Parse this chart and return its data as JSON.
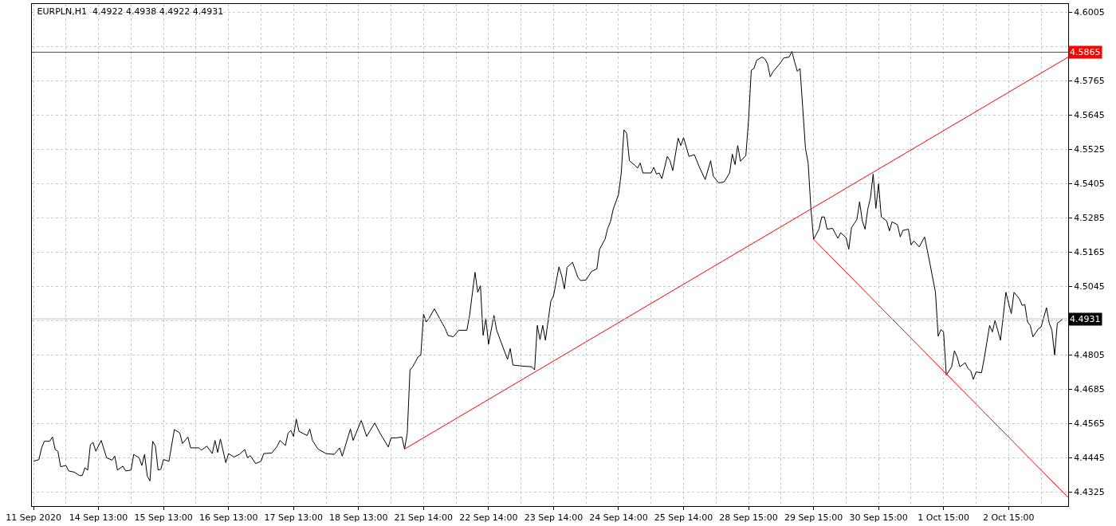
{
  "chart_data": {
    "type": "line",
    "title": "EURPLN,H1  4.4922 4.4938 4.4922 4.4931",
    "categories": [
      "11 Sep 2020",
      null,
      null,
      null,
      null,
      null,
      null,
      null,
      null,
      null,
      null,
      null,
      null,
      null,
      null,
      null,
      null,
      null,
      null,
      null,
      null,
      null,
      null,
      null,
      "14 Sep 13:00",
      null,
      null,
      null,
      null,
      null,
      null,
      null,
      null,
      null,
      null,
      null,
      null,
      null,
      null,
      null,
      null,
      null,
      null,
      null,
      null,
      null,
      null,
      null,
      "15 Sep 13:00",
      null,
      null,
      null,
      null,
      null,
      null,
      null,
      null,
      null,
      null,
      null,
      null,
      null,
      null,
      null,
      null,
      null,
      null,
      null,
      null,
      null,
      null,
      null,
      "16 Sep 13:00",
      null,
      null,
      null,
      null,
      null,
      null,
      null,
      null,
      null,
      null,
      null,
      null,
      null,
      null,
      null,
      null,
      null,
      null,
      null,
      null,
      null,
      null,
      null,
      "17 Sep 13:00",
      null,
      null,
      null,
      null,
      null,
      null,
      null,
      null,
      null,
      null,
      null,
      null,
      null,
      null,
      null,
      null,
      null,
      null,
      null,
      null,
      null,
      null,
      null,
      "18 Sep 13:00",
      null,
      null,
      null,
      null,
      null,
      null,
      null,
      null,
      null,
      null,
      null,
      null,
      null,
      null,
      null,
      null,
      null,
      null,
      null,
      null,
      null,
      null,
      null,
      "21 Sep 14:00",
      null,
      null,
      null,
      null,
      null,
      null,
      null,
      null,
      null,
      null,
      null,
      null,
      null,
      null,
      null,
      null,
      null,
      null,
      null,
      null,
      null,
      null,
      null,
      "22 Sep 14:00",
      null,
      null,
      null,
      null,
      null,
      null,
      null,
      null,
      null,
      null,
      null,
      null,
      null,
      null,
      null,
      null,
      null,
      null,
      null,
      null,
      null,
      null,
      null,
      "23 Sep 14:00",
      null,
      null,
      null,
      null,
      null,
      null,
      null,
      null,
      null,
      null,
      null,
      null,
      null,
      null,
      null,
      null,
      null,
      null,
      null,
      null,
      null,
      null,
      null,
      "24 Sep 14:00",
      null,
      null,
      null,
      null,
      null,
      null,
      null,
      null,
      null,
      null,
      null,
      null,
      null,
      null,
      null,
      null,
      null,
      null,
      null,
      null,
      null,
      null,
      null,
      "25 Sep 14:00",
      null,
      null,
      null,
      null,
      null,
      null,
      null,
      null,
      null,
      null,
      null,
      null,
      null,
      null,
      null,
      null,
      null,
      null,
      null,
      null,
      null,
      null,
      null,
      "28 Sep 15:00",
      null,
      null,
      null,
      null,
      null,
      null,
      null,
      null,
      null,
      null,
      null,
      null,
      null,
      null,
      null,
      null,
      null,
      null,
      null,
      null,
      null,
      null,
      null,
      "29 Sep 15:00",
      null,
      null,
      null,
      null,
      null,
      null,
      null,
      null,
      null,
      null,
      null,
      null,
      null,
      null,
      null,
      null,
      null,
      null,
      null,
      null,
      null,
      null,
      null,
      "30 Sep 15:00",
      null,
      null,
      null,
      null,
      null,
      null,
      null,
      null,
      null,
      null,
      null,
      null,
      null,
      null,
      null,
      null,
      null,
      null,
      null,
      null,
      null,
      null,
      null,
      "1 Oct 15:00",
      null,
      null,
      null,
      null,
      null,
      null,
      null,
      null,
      null,
      null,
      null,
      null,
      null,
      null,
      null,
      null,
      null,
      null,
      null,
      null,
      null,
      null,
      null,
      "2 Oct 15:00",
      null,
      null,
      null,
      null,
      null,
      null,
      null,
      null,
      null,
      null,
      null,
      null,
      null,
      null,
      null,
      null,
      null,
      null,
      null,
      null,
      null,
      null
    ],
    "series": [
      {
        "color": "#000000",
        "values": [
          4.4432,
          null,
          4.4438,
          4.4479,
          4.4502,
          null,
          4.4502,
          4.4517,
          4.4473,
          4.4467,
          4.4413,
          null,
          4.4417,
          4.4398,
          null,
          4.4394,
          null,
          4.4382,
          4.4382,
          4.4409,
          4.4401,
          4.449,
          4.4498,
          4.4467,
          null,
          4.4505,
          null,
          4.4444,
          null,
          4.4436,
          4.445,
          4.4401,
          null,
          4.4415,
          4.4398,
          null,
          4.4401,
          4.4456,
          null,
          4.4444,
          4.4417,
          4.4456,
          4.438,
          4.4363,
          4.4502,
          4.4485,
          4.4401,
          4.4404,
          4.4438,
          null,
          4.4432,
          null,
          4.4543,
          null,
          4.4531,
          4.4494,
          null,
          4.4517,
          4.4479,
          null,
          null,
          4.4479,
          4.4471,
          null,
          4.4485,
          null,
          4.4459,
          4.4505,
          4.4463,
          4.451,
          null,
          4.4427,
          4.4459,
          null,
          4.4447,
          null,
          4.4456,
          null,
          4.4473,
          4.4444,
          4.4452,
          null,
          4.4424,
          null,
          4.4432,
          4.4459,
          null,
          null,
          4.4461,
          null,
          4.4485,
          4.4505,
          null,
          4.4487,
          4.4531,
          4.454,
          4.4519,
          4.458,
          4.4537,
          null,
          null,
          4.4522,
          4.4545,
          4.4505,
          null,
          4.4475,
          null,
          null,
          4.4459,
          null,
          null,
          4.4456,
          null,
          4.4479,
          4.445,
          null,
          null,
          4.4545,
          4.4505,
          null,
          null,
          4.4575,
          null,
          4.4519,
          null,
          null,
          4.4566,
          null,
          4.4529,
          null,
          null,
          4.4482,
          4.4514,
          null,
          4.4514,
          null,
          4.4517,
          4.4475,
          4.4531,
          4.4752,
          4.4763,
          null,
          4.4798,
          4.4804,
          4.4947,
          4.492,
          4.4932,
          null,
          4.4966,
          4.4949,
          null,
          4.4914,
          4.4897,
          4.4873,
          null,
          4.4868,
          null,
          4.4891,
          null,
          null,
          4.4891,
          4.4943,
          null,
          4.5094,
          4.5024,
          4.5047,
          4.4873,
          4.4932,
          4.4842,
          null,
          4.4943,
          4.4891,
          null,
          null,
          null,
          4.4789,
          4.4827,
          4.4769,
          null,
          null,
          null,
          4.4765,
          null,
          null,
          4.4763,
          4.4752,
          4.4908,
          4.4858,
          4.4908,
          4.4856,
          null,
          4.4993,
          4.5012,
          null,
          4.5113,
          4.5082,
          4.5036,
          4.5111,
          null,
          4.5129,
          null,
          4.5076,
          4.5065,
          null,
          4.5067,
          null,
          4.5097,
          null,
          4.5106,
          4.5175,
          null,
          4.521,
          4.5248,
          4.5271,
          4.5314,
          null,
          4.5367,
          4.5442,
          4.5593,
          4.5581,
          4.5485,
          null,
          4.5469,
          4.5459,
          4.5477,
          4.5442,
          null,
          null,
          4.5442,
          4.5462,
          4.5438,
          4.5442,
          4.5422,
          null,
          4.55,
          4.5485,
          4.545,
          null,
          4.5564,
          4.5538,
          4.5566,
          null,
          4.55,
          null,
          4.5506,
          null,
          4.5459,
          null,
          4.5419,
          null,
          4.5485,
          4.543,
          null,
          4.5407,
          null,
          4.5411,
          null,
          4.5442,
          4.5508,
          4.5471,
          4.5538,
          4.5483,
          null,
          4.5503,
          4.5628,
          4.5802,
          4.5808,
          4.5837,
          null,
          4.5848,
          4.5842,
          4.5825,
          4.5779,
          4.5796,
          null,
          4.5819,
          4.5831,
          4.5845,
          null,
          4.5848,
          4.5868,
          4.5831,
          4.5798,
          4.5808,
          4.567,
          4.5529,
          4.5477,
          4.532,
          4.521,
          4.5227,
          4.5245,
          4.5288,
          4.5288,
          4.5245,
          null,
          4.5248,
          null,
          4.5213,
          4.5233,
          null,
          4.5215,
          4.5175,
          4.525,
          null,
          4.5279,
          4.5341,
          4.5274,
          4.5245,
          4.5314,
          4.5355,
          4.5438,
          4.5318,
          4.5404,
          4.5288,
          null,
          4.5274,
          4.5239,
          4.5271,
          null,
          4.526,
          4.5218,
          4.5241,
          null,
          4.5245,
          4.519,
          4.5204,
          null,
          4.5183,
          null,
          4.5218,
          null,
          4.5123,
          null,
          4.5024,
          4.487,
          4.4893,
          4.4885,
          4.4734,
          null,
          4.4763,
          4.4819,
          4.4798,
          4.4763,
          null,
          4.4777,
          4.4757,
          4.4749,
          4.4719,
          4.4745,
          null,
          4.4742,
          4.4792,
          null,
          4.4908,
          4.4885,
          4.4925,
          null,
          4.4856,
          4.4937,
          4.5024,
          null,
          4.4949,
          4.5024,
          null,
          4.5001,
          4.4978,
          4.4981,
          4.492,
          4.4908,
          4.4868,
          null,
          4.4896,
          4.4902,
          null,
          4.497,
          4.4916,
          4.4891,
          4.4804,
          4.4916,
          4.4923,
          4.4931,
          null,
          null
        ]
      },
      {
        "color": "#ff0000",
        "values": [
          null,
          null,
          null,
          null,
          null,
          null,
          null,
          null,
          null,
          null,
          null,
          null,
          null,
          null,
          null,
          null,
          null,
          null,
          null,
          null,
          null,
          null,
          null,
          null,
          null,
          null,
          null,
          null,
          null,
          null,
          null,
          null,
          null,
          null,
          null,
          null,
          null,
          null,
          null,
          null,
          null,
          null,
          null,
          null,
          null,
          null,
          null,
          null,
          null,
          null,
          null,
          null,
          null,
          null,
          null,
          null,
          null,
          null,
          null,
          null,
          null,
          null,
          null,
          null,
          null,
          null,
          null,
          null,
          null,
          null,
          null,
          null,
          null,
          null,
          null,
          null,
          null,
          null,
          null,
          null,
          null,
          null,
          null,
          null,
          null,
          null,
          null,
          null,
          null,
          null,
          null,
          null,
          null,
          null,
          null,
          null,
          null,
          null,
          null,
          null,
          null,
          null,
          null,
          null,
          null,
          null,
          null,
          null,
          null,
          null,
          null,
          null,
          null,
          null,
          null,
          null,
          null,
          null,
          null,
          null,
          null,
          null,
          null,
          null,
          null,
          null,
          null,
          null,
          null,
          null,
          null,
          null,
          null,
          null,
          null,
          null,
          null,
          4.4475,
          null,
          null,
          null,
          null,
          null,
          null,
          null,
          null,
          null,
          null,
          null,
          null,
          null,
          null,
          null,
          null,
          null,
          null,
          null,
          null,
          null,
          null,
          null,
          null,
          null,
          null,
          null,
          null,
          null,
          null,
          null,
          null,
          null,
          null,
          null,
          null,
          null,
          null,
          null,
          null,
          null,
          null,
          null,
          null,
          null,
          null,
          null,
          null,
          null,
          null,
          null,
          null,
          null,
          null,
          null,
          null,
          null,
          null,
          null,
          null,
          null,
          null,
          null,
          null,
          null,
          null,
          null,
          null,
          null,
          null,
          null,
          null,
          null,
          null,
          null,
          null,
          null,
          null,
          null,
          null,
          null,
          null,
          null,
          null,
          null,
          null,
          null,
          null,
          null,
          null,
          null,
          null,
          null,
          null,
          null,
          null,
          null,
          null,
          null,
          null,
          null,
          null,
          null,
          null,
          null,
          null,
          null,
          null,
          null,
          null,
          null,
          null,
          null,
          null,
          null,
          null,
          null,
          null,
          null,
          null,
          null,
          null,
          null,
          null,
          null,
          null,
          null,
          null,
          null,
          null,
          null,
          null,
          null,
          null,
          null,
          null,
          null,
          null,
          null,
          null,
          null,
          null,
          null,
          null,
          null,
          null,
          null,
          null,
          null,
          null,
          null,
          null,
          null,
          null,
          null,
          null,
          null,
          null,
          null,
          null,
          null,
          null,
          null,
          null,
          null,
          null,
          null,
          null,
          null,
          null,
          null,
          null,
          null,
          null,
          null,
          null,
          null,
          null,
          null,
          null,
          null,
          null,
          null,
          null,
          null,
          null,
          null,
          null,
          null,
          null,
          null,
          null,
          null,
          null,
          null,
          null,
          null,
          null,
          null,
          null,
          null,
          null,
          null,
          null,
          null,
          null,
          null,
          null,
          null,
          null,
          null,
          null,
          null,
          null,
          null,
          null,
          null,
          null,
          null,
          null,
          null,
          null,
          null,
          null,
          null,
          null,
          null,
          null,
          null,
          null,
          null,
          null,
          null,
          null,
          null,
          null,
          null,
          null,
          null,
          null,
          null,
          null,
          null,
          null,
          4.5848
        ]
      },
      {
        "color": "#ff0000",
        "values": [
          null,
          null,
          null,
          null,
          null,
          null,
          null,
          null,
          null,
          null,
          null,
          null,
          null,
          null,
          null,
          null,
          null,
          null,
          null,
          null,
          null,
          null,
          null,
          null,
          null,
          null,
          null,
          null,
          null,
          null,
          null,
          null,
          null,
          null,
          null,
          null,
          null,
          null,
          null,
          null,
          null,
          null,
          null,
          null,
          null,
          null,
          null,
          null,
          null,
          null,
          null,
          null,
          null,
          null,
          null,
          null,
          null,
          null,
          null,
          null,
          null,
          null,
          null,
          null,
          null,
          null,
          null,
          null,
          null,
          null,
          null,
          null,
          null,
          null,
          null,
          null,
          null,
          null,
          null,
          null,
          null,
          null,
          null,
          null,
          null,
          null,
          null,
          null,
          null,
          null,
          null,
          null,
          null,
          null,
          null,
          null,
          null,
          null,
          null,
          null,
          null,
          null,
          null,
          null,
          null,
          null,
          null,
          null,
          null,
          null,
          null,
          null,
          null,
          null,
          null,
          null,
          null,
          null,
          null,
          null,
          null,
          null,
          null,
          null,
          null,
          null,
          null,
          null,
          null,
          null,
          null,
          null,
          null,
          null,
          null,
          null,
          null,
          null,
          null,
          null,
          null,
          null,
          null,
          null,
          null,
          null,
          null,
          null,
          null,
          null,
          null,
          null,
          null,
          null,
          null,
          null,
          null,
          null,
          null,
          null,
          null,
          null,
          null,
          null,
          null,
          null,
          null,
          null,
          null,
          null,
          null,
          null,
          null,
          null,
          null,
          null,
          null,
          null,
          null,
          null,
          null,
          null,
          null,
          null,
          null,
          null,
          null,
          null,
          null,
          null,
          null,
          null,
          null,
          null,
          null,
          null,
          null,
          null,
          null,
          null,
          null,
          null,
          null,
          null,
          null,
          null,
          null,
          null,
          null,
          null,
          null,
          null,
          null,
          null,
          null,
          null,
          null,
          null,
          null,
          null,
          null,
          null,
          null,
          null,
          null,
          null,
          null,
          null,
          null,
          null,
          null,
          null,
          null,
          null,
          null,
          null,
          null,
          null,
          null,
          null,
          null,
          null,
          null,
          null,
          null,
          null,
          null,
          null,
          null,
          null,
          null,
          null,
          null,
          null,
          null,
          null,
          null,
          null,
          null,
          null,
          null,
          null,
          null,
          null,
          null,
          null,
          null,
          null,
          null,
          null,
          null,
          null,
          null,
          null,
          null,
          null,
          null,
          null,
          null,
          null,
          null,
          null,
          null,
          null,
          null,
          null,
          null,
          null,
          4.521,
          null,
          null,
          null,
          null,
          null,
          null,
          null,
          null,
          null,
          null,
          null,
          null,
          null,
          null,
          null,
          null,
          null,
          null,
          null,
          null,
          null,
          null,
          null,
          null,
          null,
          null,
          null,
          null,
          null,
          null,
          null,
          null,
          null,
          null,
          null,
          null,
          null,
          null,
          null,
          null,
          null,
          null,
          null,
          null,
          null,
          null,
          null,
          null,
          null,
          null,
          null,
          null,
          null,
          null,
          null,
          null,
          null,
          null,
          null,
          null,
          null,
          null,
          null,
          null,
          null,
          null,
          null,
          null,
          null,
          null,
          null,
          null,
          null,
          null,
          null,
          null,
          null,
          null,
          null,
          null,
          null,
          null,
          null,
          null,
          null,
          null,
          null,
          null,
          null,
          null,
          null,
          null,
          null,
          4.4305
        ]
      }
    ],
    "ylim": [
      4.4275,
      4.6034
    ],
    "yticks": [
      4.4325,
      4.4445,
      4.4565,
      4.4685,
      4.4805,
      {
        "value": 4.4925,
        "label": null
      },
      4.5045,
      4.5165,
      4.5285,
      4.5405,
      4.5525,
      4.5645,
      4.5765,
      {
        "value": 4.5885,
        "label": null
      },
      4.6005
    ],
    "ref_lines": [
      {
        "axis": "y",
        "value": 4.5865,
        "label": "4.5865",
        "color": "#ff0000"
      },
      {
        "axis": "y",
        "value": 4.4931,
        "label": "4.4931",
        "color": "#c0c0c0"
      }
    ],
    "grid": true,
    "line_style": "solid",
    "marker": "none"
  }
}
